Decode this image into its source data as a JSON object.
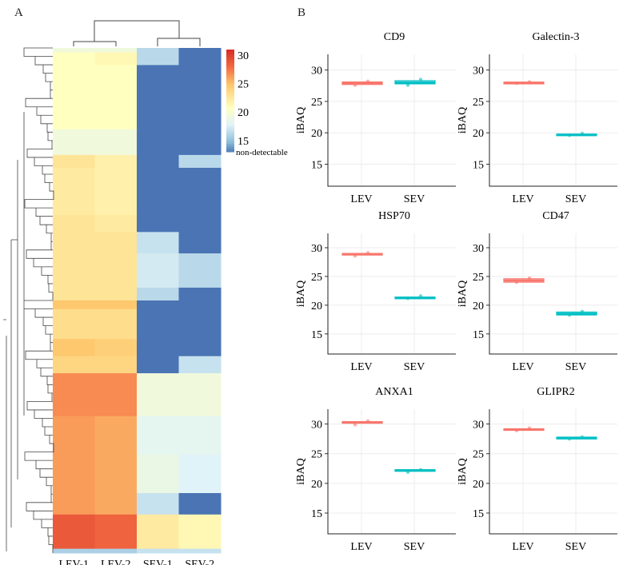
{
  "panel_labels": {
    "a": "A",
    "b": "B"
  },
  "chart_data": [
    {
      "type": "heatmap",
      "columns": [
        "LEV-1",
        "LEV-2",
        "SEV-1",
        "SEV-2"
      ],
      "colorbar": {
        "ticks": [
          30,
          25,
          20,
          15
        ],
        "na_label": "non-detectable",
        "range": [
          13,
          31
        ]
      },
      "row_blocks": [
        {
          "n": 2,
          "values": [
            19.5,
            19.5,
            16.5,
            null
          ]
        },
        {
          "n": 6,
          "values": [
            21,
            21.5,
            16.5,
            null
          ]
        },
        {
          "n": 30,
          "values": [
            21,
            21,
            null,
            null
          ]
        },
        {
          "n": 12,
          "values": [
            19.5,
            19.5,
            null,
            null
          ]
        },
        {
          "n": 6,
          "values": [
            23,
            22,
            null,
            16.5
          ]
        },
        {
          "n": 22,
          "values": [
            22.5,
            22,
            null,
            null
          ]
        },
        {
          "n": 8,
          "values": [
            23,
            22.5,
            null,
            null
          ]
        },
        {
          "n": 10,
          "values": [
            23,
            23,
            17,
            null
          ]
        },
        {
          "n": 16,
          "values": [
            23,
            23,
            17.5,
            16.5
          ]
        },
        {
          "n": 6,
          "values": [
            23,
            23,
            16.5,
            null
          ]
        },
        {
          "n": 4,
          "values": [
            25,
            25,
            null,
            null
          ]
        },
        {
          "n": 14,
          "values": [
            23.5,
            23.5,
            null,
            null
          ]
        },
        {
          "n": 8,
          "values": [
            25,
            24.5,
            null,
            null
          ]
        },
        {
          "n": 8,
          "values": [
            24,
            24,
            null,
            17
          ]
        },
        {
          "n": 20,
          "values": [
            27,
            27,
            19.5,
            19.5
          ]
        },
        {
          "n": 18,
          "values": [
            26.5,
            26,
            18.5,
            18.5
          ]
        },
        {
          "n": 18,
          "values": [
            26.5,
            26,
            19,
            18
          ]
        },
        {
          "n": 10,
          "values": [
            26.5,
            26,
            17,
            null
          ]
        },
        {
          "n": 16,
          "values": [
            29,
            28.5,
            22.5,
            21.5
          ]
        },
        {
          "n": 2,
          "values": [
            16,
            16,
            17,
            17
          ]
        }
      ]
    },
    {
      "type": "box",
      "ylabel": "iBAQ",
      "ylim": [
        11.5,
        32.5
      ],
      "yticks": [
        15,
        20,
        25,
        30
      ],
      "groups": [
        "LEV",
        "SEV"
      ],
      "group_colors": [
        "#f8766d",
        "#00bfc4"
      ],
      "panels": [
        {
          "title": "CD9",
          "boxes": [
            {
              "q1": 27.7,
              "median": 27.9,
              "q3": 28.1,
              "points": [
                27.6,
                28.2
              ]
            },
            {
              "q1": 27.8,
              "median": 28.0,
              "q3": 28.3,
              "points": [
                27.6,
                28.5
              ]
            }
          ]
        },
        {
          "title": "Galectin-3",
          "boxes": [
            {
              "q1": 27.95,
              "median": 28.0,
              "q3": 28.05,
              "points": [
                27.9,
                28.1
              ]
            },
            {
              "q1": 19.6,
              "median": 19.7,
              "q3": 19.8,
              "points": [
                19.6,
                19.9
              ]
            }
          ]
        },
        {
          "title": "HSP70",
          "boxes": [
            {
              "q1": 28.8,
              "median": 28.9,
              "q3": 29.0,
              "points": [
                28.6,
                29.1
              ]
            },
            {
              "q1": 21.2,
              "median": 21.3,
              "q3": 21.4,
              "points": [
                21.2,
                21.6
              ]
            }
          ]
        },
        {
          "title": "CD47",
          "boxes": [
            {
              "q1": 24.0,
              "median": 24.3,
              "q3": 24.6,
              "points": [
                24.0,
                24.7
              ]
            },
            {
              "q1": 18.3,
              "median": 18.5,
              "q3": 18.8,
              "points": [
                18.3,
                18.9
              ]
            }
          ]
        },
        {
          "title": "ANXA1",
          "boxes": [
            {
              "q1": 30.2,
              "median": 30.3,
              "q3": 30.4,
              "points": [
                29.9,
                30.5
              ]
            },
            {
              "q1": 22.1,
              "median": 22.2,
              "q3": 22.3,
              "points": [
                21.9,
                22.3
              ]
            }
          ]
        },
        {
          "title": "GLIPR2",
          "boxes": [
            {
              "q1": 29.0,
              "median": 29.1,
              "q3": 29.2,
              "points": [
                28.9,
                29.3
              ]
            },
            {
              "q1": 27.65,
              "median": 27.7,
              "q3": 27.75,
              "points": [
                27.5,
                27.8
              ]
            }
          ]
        }
      ]
    }
  ]
}
